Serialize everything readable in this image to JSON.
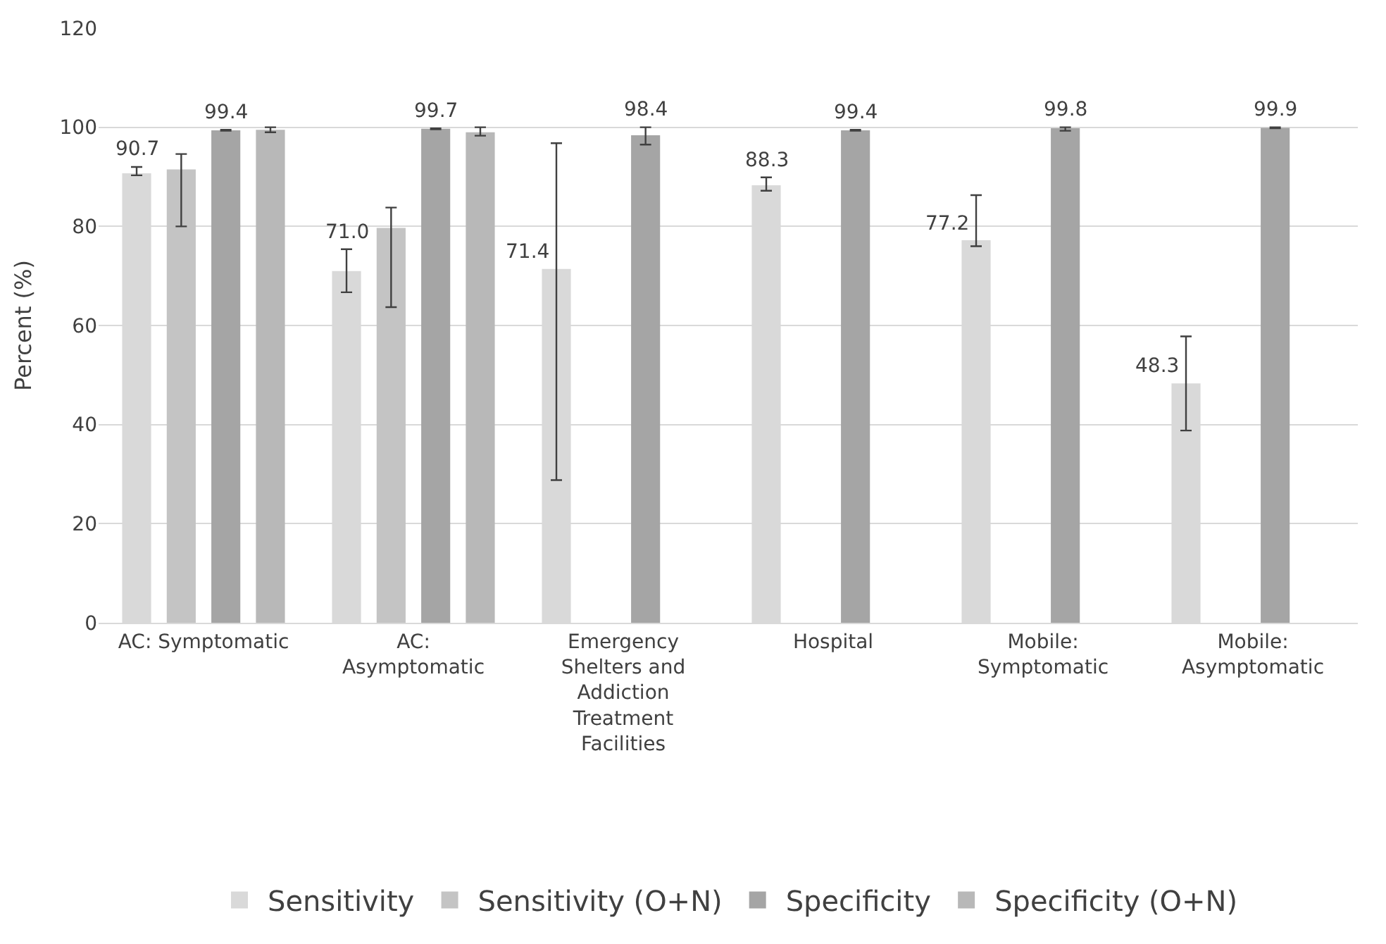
{
  "chart_data": {
    "type": "bar",
    "ylabel": "Percent (%)",
    "categories": [
      "AC: Symptomatic",
      "AC:\nAsymptomatic",
      "Emergency\nShelters and\nAddiction\nTreatment\nFacilities",
      "Hospital",
      "Mobile:\nSymptomatic",
      "Mobile:\nAsymptomatic"
    ],
    "series": [
      {
        "name": "Sensitivity",
        "color": "#d9d9d9",
        "values": [
          90.7,
          71.0,
          71.4,
          88.3,
          77.2,
          48.3
        ],
        "errors": [
          [
            90.3,
            92.0
          ],
          [
            66.7,
            75.4
          ],
          [
            28.8,
            96.8
          ],
          [
            87.2,
            89.9
          ],
          [
            76.0,
            86.3
          ],
          [
            38.8,
            57.8
          ]
        ],
        "value_labels": [
          "90.7",
          "71.0",
          "71.4",
          "88.3",
          "77.2",
          "48.3"
        ]
      },
      {
        "name": "Sensitivity (O+N)",
        "color": "#c4c4c4",
        "values": [
          91.5,
          79.7,
          null,
          null,
          null,
          null
        ],
        "errors": [
          [
            80.0,
            94.6
          ],
          [
            63.7,
            83.8
          ],
          null,
          null,
          null,
          null
        ]
      },
      {
        "name": "Specificity",
        "color": "#a5a5a5",
        "values": [
          99.4,
          99.7,
          98.4,
          99.4,
          99.8,
          99.9
        ],
        "errors": [
          [
            99.3,
            99.5
          ],
          [
            99.6,
            99.8
          ],
          [
            96.5,
            100
          ],
          [
            99.3,
            99.5
          ],
          [
            99.3,
            100
          ],
          [
            99.8,
            100
          ]
        ],
        "value_labels": [
          "99.4",
          "99.7",
          "98.4",
          "99.4",
          "99.8",
          "99.9"
        ]
      },
      {
        "name": "Specificity (O+N)",
        "color": "#b8b8b8",
        "values": [
          99.5,
          99.0,
          null,
          null,
          null,
          null
        ],
        "errors": [
          [
            99.0,
            100
          ],
          [
            98.3,
            100
          ],
          null,
          null,
          null,
          null
        ]
      }
    ],
    "ylim": [
      0,
      120
    ],
    "yticks": [
      0,
      20,
      40,
      60,
      80,
      100,
      120
    ],
    "grid": "y",
    "legend": "bottom"
  }
}
